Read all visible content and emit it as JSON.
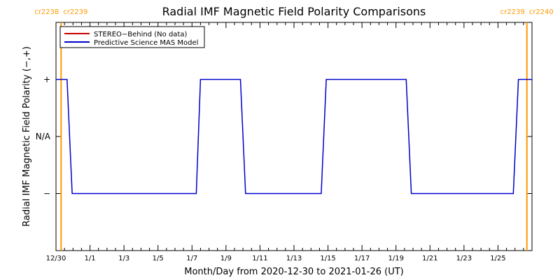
{
  "chart_data": {
    "type": "line",
    "title": "Radial IMF Magnetic Field Polarity Comparisons",
    "xlabel": "Month/Day from 2020-12-30 to 2021-01-26 (UT)",
    "ylabel": "Radial IMF Magnetic Field Polarity (−,+)",
    "xlim": [
      0,
      28
    ],
    "ylim": [
      -2,
      2
    ],
    "x_ticks": [
      {
        "x": 0,
        "label": "12/30"
      },
      {
        "x": 2,
        "label": "1/1"
      },
      {
        "x": 4,
        "label": "1/3"
      },
      {
        "x": 6,
        "label": "1/5"
      },
      {
        "x": 8,
        "label": "1/7"
      },
      {
        "x": 10,
        "label": "1/9"
      },
      {
        "x": 12,
        "label": "1/11"
      },
      {
        "x": 14,
        "label": "1/13"
      },
      {
        "x": 16,
        "label": "1/15"
      },
      {
        "x": 18,
        "label": "1/17"
      },
      {
        "x": 20,
        "label": "1/19"
      },
      {
        "x": 22,
        "label": "1/21"
      },
      {
        "x": 24,
        "label": "1/23"
      },
      {
        "x": 26,
        "label": "1/25"
      }
    ],
    "y_ticks": [
      {
        "y": 1,
        "label": "+"
      },
      {
        "y": 0,
        "label": "N/A"
      },
      {
        "y": -1,
        "label": "−"
      }
    ],
    "carrington_boundaries": [
      {
        "x": 0.3,
        "label_left": "cr2238",
        "label_right": "cr2239"
      },
      {
        "x": 27.7,
        "label_left": "cr2239",
        "label_right": "cr2240"
      }
    ],
    "legend": {
      "placement": "top-left",
      "entries": [
        {
          "name": "STEREO−Behind (No data)",
          "color": "#cc0000"
        },
        {
          "name": "Predictive Science MAS Model",
          "color": "#0000cc"
        }
      ]
    },
    "series": [
      {
        "name": "Predictive Science MAS Model",
        "color": "#0000cc",
        "x": [
          0,
          0.65,
          0.95,
          8.25,
          8.5,
          10.85,
          11.15,
          15.6,
          15.9,
          20.6,
          20.9,
          26.9,
          27.2,
          28
        ],
        "y": [
          1,
          1,
          -1,
          -1,
          1,
          1,
          -1,
          -1,
          1,
          1,
          -1,
          -1,
          1,
          1
        ]
      }
    ],
    "colors": {
      "boundary": "#ff9900",
      "axes": "#000000"
    }
  }
}
